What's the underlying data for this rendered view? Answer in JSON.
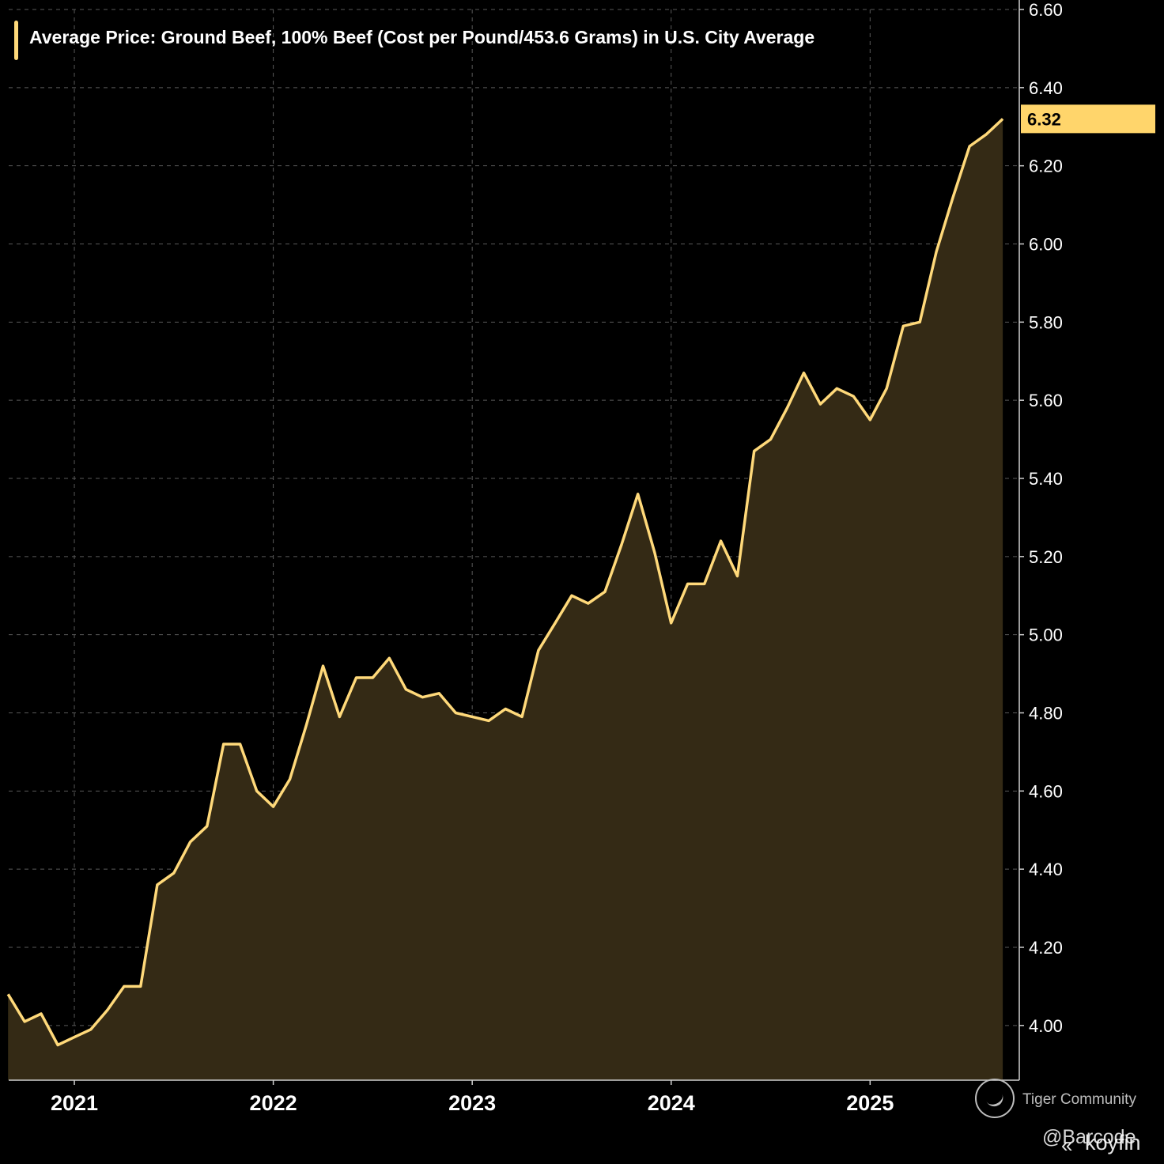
{
  "title": "Average Price: Ground Beef, 100% Beef (Cost per Pound/453.6 Grams) in U.S. City Average",
  "colors": {
    "line": "#ffd97a",
    "fill": "#342a15",
    "grid": "#5a5a5a",
    "background": "#000000",
    "badge": "#ffd56b"
  },
  "watermark": {
    "text": "Tiger Community",
    "handle": "@Barcode",
    "brand": "koyfin"
  },
  "chart_data": {
    "type": "area",
    "title": "Average Price: Ground Beef, 100% Beef (Cost per Pound/453.6 Grams) in U.S. City Average",
    "xlabel": "",
    "ylabel": "",
    "ylim": [
      3.86,
      6.6
    ],
    "xlim": [
      2020.67,
      2025.75
    ],
    "grid": true,
    "legend": "top-left",
    "yticks": [
      4.0,
      4.2,
      4.4,
      4.6,
      4.8,
      5.0,
      5.2,
      5.4,
      5.6,
      5.8,
      6.0,
      6.2,
      6.4,
      6.6
    ],
    "ytick_labels": [
      "4.00",
      "4.20",
      "4.40",
      "4.60",
      "4.80",
      "5.00",
      "5.20",
      "5.40",
      "5.60",
      "5.80",
      "6.00",
      "6.20",
      "6.40",
      "6.60"
    ],
    "xticks": [
      2021,
      2022,
      2023,
      2024,
      2025
    ],
    "xtick_labels": [
      "2021",
      "2022",
      "2023",
      "2024",
      "2025"
    ],
    "last_value_label": "6.32",
    "series": [
      {
        "name": "Ground Beef, 100% Beef",
        "x": [
          2020.667,
          2020.75,
          2020.833,
          2020.917,
          2021.0,
          2021.083,
          2021.167,
          2021.25,
          2021.333,
          2021.417,
          2021.5,
          2021.583,
          2021.667,
          2021.75,
          2021.833,
          2021.917,
          2022.0,
          2022.083,
          2022.167,
          2022.25,
          2022.333,
          2022.417,
          2022.5,
          2022.583,
          2022.667,
          2022.75,
          2022.833,
          2022.917,
          2023.0,
          2023.083,
          2023.167,
          2023.25,
          2023.333,
          2023.417,
          2023.5,
          2023.583,
          2023.667,
          2023.75,
          2023.833,
          2023.917,
          2024.0,
          2024.083,
          2024.167,
          2024.25,
          2024.333,
          2024.417,
          2024.5,
          2024.583,
          2024.667,
          2024.75,
          2024.833,
          2024.917,
          2025.0,
          2025.083,
          2025.167,
          2025.25,
          2025.333,
          2025.417,
          2025.5,
          2025.583,
          2025.667
        ],
        "values": [
          4.08,
          4.01,
          4.03,
          3.95,
          3.97,
          3.99,
          4.04,
          4.1,
          4.1,
          4.36,
          4.39,
          4.47,
          4.51,
          4.72,
          4.72,
          4.6,
          4.56,
          4.63,
          4.77,
          4.92,
          4.79,
          4.89,
          4.89,
          4.94,
          4.86,
          4.84,
          4.85,
          4.8,
          4.79,
          4.78,
          4.81,
          4.79,
          4.96,
          5.03,
          5.1,
          5.08,
          5.11,
          5.23,
          5.36,
          5.21,
          5.03,
          5.13,
          5.13,
          5.24,
          5.15,
          5.47,
          5.5,
          5.58,
          5.67,
          5.59,
          5.63,
          5.61,
          5.55,
          5.63,
          5.79,
          5.8,
          5.98,
          6.12,
          6.25,
          6.28,
          6.32
        ]
      }
    ]
  }
}
